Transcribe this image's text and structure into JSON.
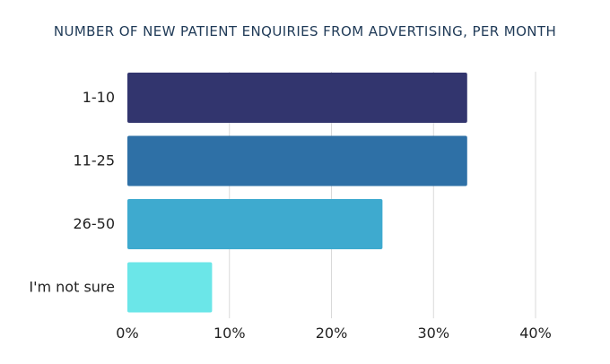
{
  "chart_data": {
    "type": "bar",
    "orientation": "horizontal",
    "title": "NUMBER OF NEW PATIENT ENQUIRIES FROM ADVERTISING, PER MONTH",
    "categories": [
      "1-10",
      "11-25",
      "26-50",
      "I'm not sure"
    ],
    "values": [
      33.3,
      33.3,
      25.0,
      8.3
    ],
    "value_unit": "%",
    "xlim": [
      0,
      40
    ],
    "xticks": [
      0,
      10,
      20,
      30,
      40
    ],
    "xtick_labels": [
      "0%",
      "10%",
      "20%",
      "30%",
      "40%"
    ],
    "xlabel": "",
    "ylabel": "",
    "grid": "vertical",
    "legend": "none",
    "colors": [
      "#32356e",
      "#2e70a6",
      "#3eaacf",
      "#6be6e8"
    ],
    "grid_color": "#d9d9d9",
    "text_color": "#222222",
    "title_color": "#1f3a57"
  }
}
